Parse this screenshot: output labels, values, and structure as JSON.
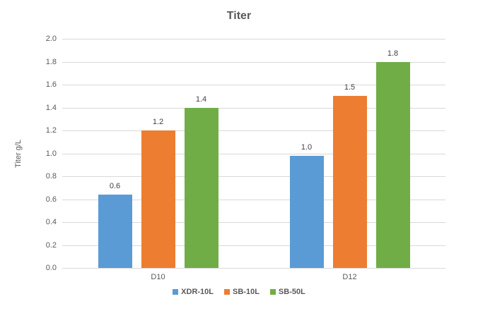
{
  "chart_data": {
    "type": "bar",
    "title": "Titer",
    "xlabel": "",
    "ylabel": "Titer g/L",
    "categories": [
      "D10",
      "D12"
    ],
    "series": [
      {
        "name": "XDR-10L",
        "color": "#5B9BD5",
        "values": [
          0.64,
          0.98
        ],
        "data_labels": [
          "0.6",
          "1.0"
        ]
      },
      {
        "name": "SB-10L",
        "color": "#ED7D31",
        "values": [
          1.2,
          1.5
        ],
        "data_labels": [
          "1.2",
          "1.5"
        ]
      },
      {
        "name": "SB-50L",
        "color": "#70AD47",
        "values": [
          1.4,
          1.8
        ],
        "data_labels": [
          "1.4",
          "1.8"
        ]
      }
    ],
    "ylim": [
      0.0,
      2.0
    ],
    "ytick_step": 0.2,
    "ytick_labels": [
      "0.0",
      "0.2",
      "0.4",
      "0.6",
      "0.8",
      "1.0",
      "1.2",
      "1.4",
      "1.6",
      "1.8",
      "2.0"
    ],
    "grid": true,
    "legend_position": "bottom",
    "colors": {
      "title_text": "#595959",
      "axis_text": "#595959",
      "data_label_text": "#404040",
      "gridline": "#d9d9d9",
      "background": "#ffffff"
    }
  }
}
